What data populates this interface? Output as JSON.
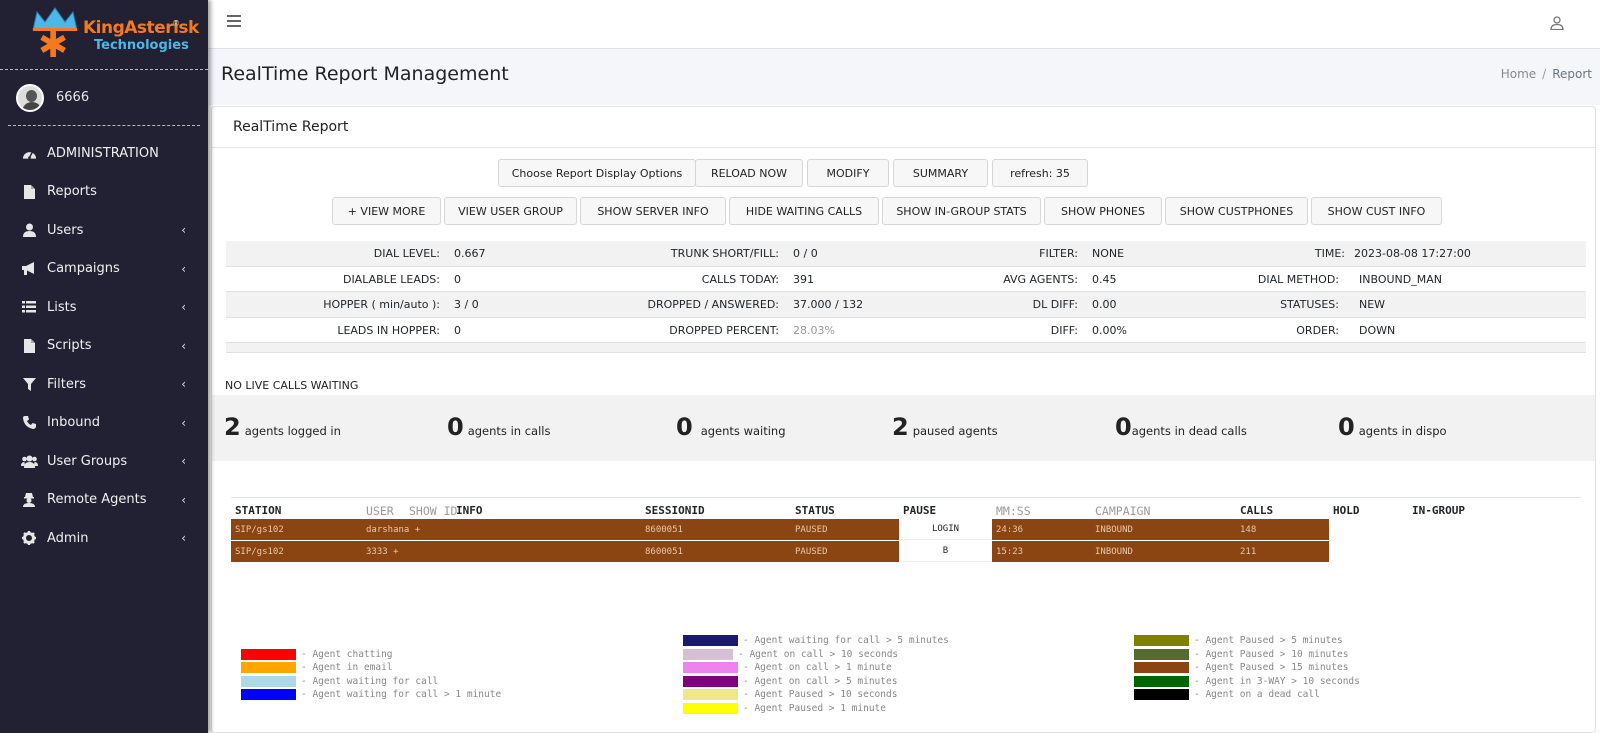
{
  "brand": {
    "name": "KingAsterisk",
    "sub": "Technologies",
    "reg": "®"
  },
  "user": {
    "name": "6666"
  },
  "sidebar": {
    "items": [
      {
        "label": "ADMINISTRATION",
        "icon": "dashboard-icon",
        "chevron": false
      },
      {
        "label": "Reports",
        "icon": "file-icon",
        "chevron": false
      },
      {
        "label": "Users",
        "icon": "user-icon",
        "chevron": true
      },
      {
        "label": "Campaigns",
        "icon": "megaphone-icon",
        "chevron": true
      },
      {
        "label": "Lists",
        "icon": "list-icon",
        "chevron": true
      },
      {
        "label": "Scripts",
        "icon": "file-icon",
        "chevron": true
      },
      {
        "label": "Filters",
        "icon": "filter-icon",
        "chevron": true
      },
      {
        "label": "Inbound",
        "icon": "phone-icon",
        "chevron": true
      },
      {
        "label": "User Groups",
        "icon": "users-icon",
        "chevron": true
      },
      {
        "label": "Remote Agents",
        "icon": "user-secret-icon",
        "chevron": true
      },
      {
        "label": "Admin",
        "icon": "gear-icon",
        "chevron": true
      }
    ]
  },
  "header": {
    "title": "RealTime Report Management",
    "breadcrumb_home": "Home",
    "breadcrumb_sep": "/",
    "breadcrumb_current": "Report"
  },
  "card": {
    "title": "RealTime Report"
  },
  "toolbar1": {
    "choose": "Choose Report Display Options",
    "reload": "RELOAD NOW",
    "modify": "MODIFY",
    "summary": "SUMMARY",
    "refresh": "refresh: 35"
  },
  "toolbar2": {
    "view_more": "+ VIEW MORE",
    "view_user_group": "VIEW USER GROUP",
    "show_server_info": "SHOW SERVER INFO",
    "hide_waiting_calls": "HIDE WAITING CALLS",
    "show_ingroup_stats": "SHOW IN-GROUP STATS",
    "show_phones": "SHOW PHONES",
    "show_custphones": "SHOW CUSTPHONES",
    "show_cust_info": "SHOW CUST INFO"
  },
  "stats": {
    "dial_level_label": "DIAL LEVEL:",
    "dial_level": "0.667",
    "trunk_label": "TRUNK SHORT/FILL:",
    "trunk": "0 / 0",
    "filter_label": "FILTER:",
    "filter": "NONE",
    "time_label": "TIME:",
    "time": "2023-08-08 17:27:00",
    "dialable_label": "DIALABLE LEADS:",
    "dialable": "0",
    "calls_today_label": "CALLS TODAY:",
    "calls_today": "391",
    "avg_agents_label": "AVG AGENTS:",
    "avg_agents": "0.45",
    "dial_method_label": "DIAL METHOD:",
    "dial_method": "INBOUND_MAN",
    "hopper_label": "HOPPER ( min/auto ):",
    "hopper": "3 / 0",
    "dropped_answered_label": "DROPPED / ANSWERED:",
    "dropped_answered": "37.000 / 132",
    "dl_diff_label": "DL DIFF:",
    "dl_diff": "0.00",
    "statuses_label": "STATUSES:",
    "statuses": "NEW",
    "leads_hopper_label": "LEADS IN HOPPER:",
    "leads_hopper": "0",
    "dropped_pct_label": "DROPPED PERCENT:",
    "dropped_pct": "28.03%",
    "diff_label": "DIFF:",
    "diff": "0.00%",
    "order_label": "ORDER:",
    "order": "DOWN"
  },
  "no_live": "NO LIVE CALLS WAITING",
  "summary": {
    "logged_in_num": "2",
    "logged_in_txt": "agents logged in",
    "in_calls_num": "0",
    "in_calls_txt": "agents in calls",
    "waiting_num": "0",
    "waiting_txt": "agents waiting",
    "paused_num": "2",
    "paused_txt": "paused agents",
    "dead_num": "0",
    "dead_txt": "agents in dead calls",
    "dispo_num": "0",
    "dispo_txt": "agents in dispo"
  },
  "agent_table": {
    "headers": {
      "station": "STATION",
      "user": "USER",
      "show_id": "SHOW ID",
      "info": "INFO",
      "sessionid": "SESSIONID",
      "status": "STATUS",
      "pause": "PAUSE",
      "mmss": "MM:SS",
      "campaign": "CAMPAIGN",
      "calls": "CALLS",
      "hold": "HOLD",
      "ingroup": "IN-GROUP"
    },
    "rows": [
      {
        "station": "SIP/gs102",
        "user": "darshana +",
        "session": "8600051",
        "status": "PAUSED",
        "pause": "LOGIN",
        "mmss": "24:36",
        "campaign": "INBOUND",
        "calls": "148"
      },
      {
        "station": "SIP/gs102",
        "user": "3333 +",
        "session": "8600051",
        "status": "PAUSED",
        "pause": "B",
        "mmss": "15:23",
        "campaign": "INBOUND",
        "calls": "211"
      }
    ]
  },
  "legend": {
    "col1": [
      {
        "color": "#ff0000",
        "label": "- Agent chatting"
      },
      {
        "color": "#ffa500",
        "label": "- Agent in email"
      },
      {
        "color": "#add8e6",
        "label": "- Agent waiting for call"
      },
      {
        "color": "#0000ff",
        "label": "- Agent waiting for call > 1 minute"
      }
    ],
    "col2": [
      {
        "color": "#191970",
        "label": "- Agent waiting for call > 5 minutes"
      },
      {
        "color": "#d8bfd8",
        "label": "- Agent on call > 10 seconds"
      },
      {
        "color": "#ee82ee",
        "label": "- Agent on call > 1 minute"
      },
      {
        "color": "#800080",
        "label": "- Agent on call > 5 minutes"
      },
      {
        "color": "#f0e68c",
        "label": "- Agent Paused > 10 seconds"
      },
      {
        "color": "#ffff00",
        "label": "- Agent Paused > 1 minute"
      }
    ],
    "col3": [
      {
        "color": "#808000",
        "label": "- Agent Paused > 5 minutes"
      },
      {
        "color": "#556b2f",
        "label": "- Agent Paused > 10 minutes"
      },
      {
        "color": "#8b4513",
        "label": "- Agent Paused > 15 minutes"
      },
      {
        "color": "#006400",
        "label": "- Agent in 3-WAY > 10 seconds"
      },
      {
        "color": "#000000",
        "label": "- Agent on a dead call"
      }
    ]
  }
}
